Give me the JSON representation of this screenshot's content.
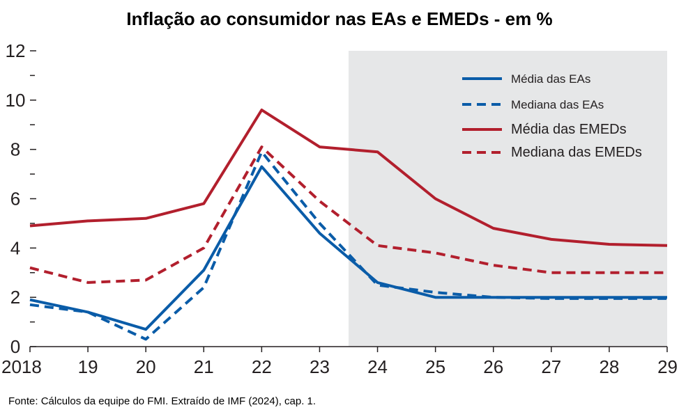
{
  "chart_data": {
    "type": "line",
    "title": "Inflação ao consumidor nas EAs e EMEDs - em %",
    "x": [
      "2018",
      "19",
      "20",
      "21",
      "22",
      "23",
      "24",
      "25",
      "26",
      "27",
      "28",
      "29"
    ],
    "ylim": [
      0,
      12
    ],
    "yticks": [
      "0",
      "2",
      "4",
      "6",
      "8",
      "10",
      "12"
    ],
    "projection_shading_from": "23.5",
    "series": [
      {
        "name": "Média das EAs",
        "color": "#0a5ca8",
        "dash": "solid",
        "values": [
          1.9,
          1.4,
          0.7,
          3.1,
          7.3,
          4.6,
          2.6,
          2.0,
          2.0,
          2.0,
          2.0,
          2.0
        ]
      },
      {
        "name": "Mediana das EAs",
        "color": "#0a5ca8",
        "dash": "dashed",
        "values": [
          1.7,
          1.4,
          0.3,
          2.4,
          7.9,
          5.0,
          2.5,
          2.2,
          2.0,
          1.95,
          1.95,
          1.95
        ]
      },
      {
        "name": "Média das EMEDs",
        "color": "#b21f2d",
        "dash": "solid",
        "values": [
          4.9,
          5.1,
          5.2,
          5.8,
          9.6,
          8.1,
          7.9,
          6.0,
          4.8,
          4.35,
          4.15,
          4.1
        ]
      },
      {
        "name": "Mediana das EMEDs",
        "color": "#b21f2d",
        "dash": "dashed",
        "values": [
          3.2,
          2.6,
          2.7,
          4.0,
          8.1,
          5.9,
          4.1,
          3.8,
          3.3,
          3.0,
          3.0,
          3.0
        ]
      }
    ],
    "legend_position": "top-right",
    "shading_color": "#e6e7e8"
  },
  "source": "Fonte: Cálculos da equipe do FMI. Extraído de IMF (2024), cap. 1."
}
